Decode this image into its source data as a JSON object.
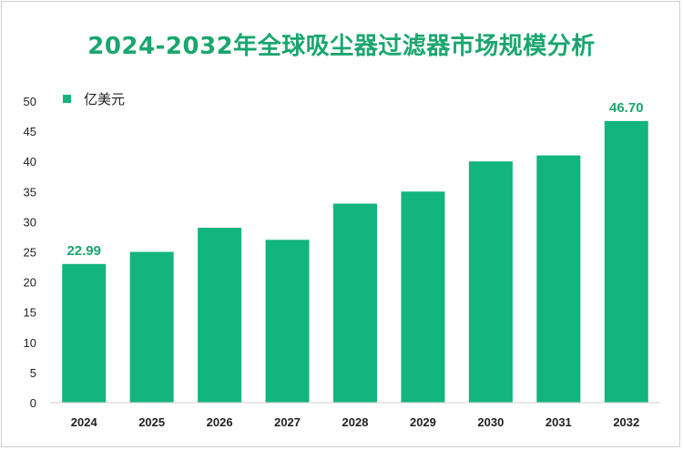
{
  "chart_data": {
    "type": "bar",
    "title": "2024-2032年全球吸尘器过滤器市场规模分析",
    "categories": [
      "2024",
      "2025",
      "2026",
      "2027",
      "2028",
      "2029",
      "2030",
      "2031",
      "2032"
    ],
    "series": [
      {
        "name": "亿美元",
        "values": [
          22.99,
          25,
          29,
          27,
          33,
          35,
          40,
          41,
          46.7
        ]
      }
    ],
    "data_labels": {
      "2024": "22.99",
      "2032": "46.70"
    },
    "ylim": [
      0,
      50
    ],
    "yticks": [
      "0",
      "5",
      "10",
      "15",
      "20",
      "25",
      "30",
      "35",
      "40",
      "45",
      "50"
    ],
    "grid": false,
    "legend": "top-left",
    "bar_color": "#12b57e"
  }
}
